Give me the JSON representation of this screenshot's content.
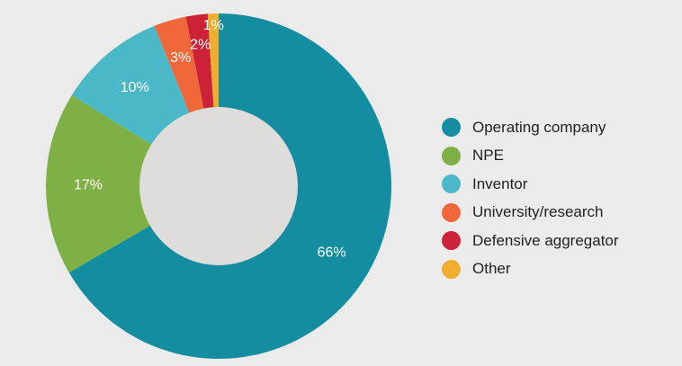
{
  "chart_data": {
    "type": "pie",
    "style": "donut",
    "title": "",
    "slices": [
      {
        "label": "Operating company",
        "value": 66,
        "display": "66%",
        "color": "#138d9f"
      },
      {
        "label": "NPE",
        "value": 17,
        "display": "17%",
        "color": "#7fb045"
      },
      {
        "label": "Inventor",
        "value": 10,
        "display": "10%",
        "color": "#4bb8c8"
      },
      {
        "label": "University/research",
        "value": 3,
        "display": "3%",
        "color": "#f0683a"
      },
      {
        "label": "Defensive aggregator",
        "value": 2,
        "display": "2%",
        "color": "#cc2237"
      },
      {
        "label": "Other",
        "value": 1,
        "display": "1%",
        "color": "#efae30"
      }
    ],
    "legend_position": "right",
    "center_color": "#dedddc"
  }
}
